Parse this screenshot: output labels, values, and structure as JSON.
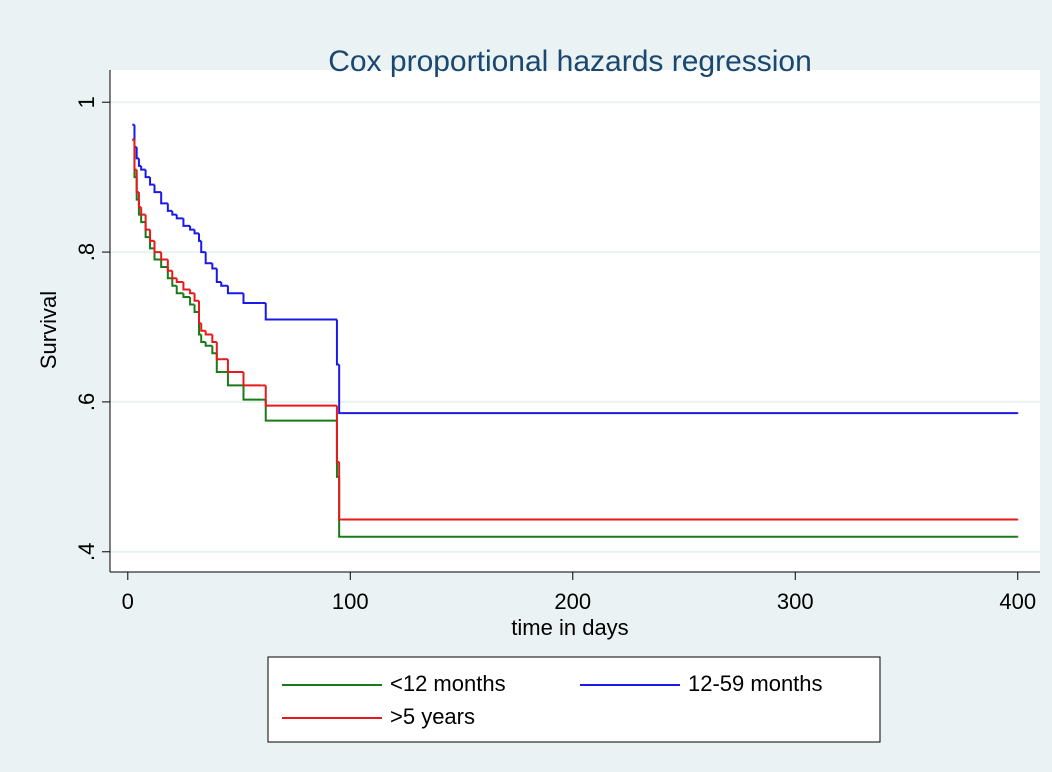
{
  "chart_data": {
    "type": "step",
    "title": "Cox proportional hazards regression",
    "xlabel": "time in days",
    "ylabel": "Survival",
    "x": [
      2,
      3,
      4,
      5,
      6,
      8,
      10,
      12,
      15,
      18,
      20,
      22,
      25,
      28,
      30,
      32,
      33,
      35,
      38,
      40,
      42,
      45,
      52,
      60,
      62,
      94,
      95,
      96,
      400
    ],
    "series": [
      {
        "name": "<12 months",
        "color": "#1a7a1a",
        "values": [
          0.95,
          0.9,
          0.87,
          0.85,
          0.84,
          0.82,
          0.805,
          0.79,
          0.78,
          0.765,
          0.755,
          0.745,
          0.74,
          0.73,
          0.72,
          0.69,
          0.68,
          0.675,
          0.665,
          0.64,
          0.64,
          0.622,
          0.603,
          0.603,
          0.575,
          0.5,
          0.42,
          0.42,
          0.42
        ]
      },
      {
        "name": "12-59 months",
        "color": "#1a1ae6",
        "values": [
          0.97,
          0.94,
          0.925,
          0.915,
          0.91,
          0.9,
          0.89,
          0.88,
          0.865,
          0.855,
          0.85,
          0.845,
          0.835,
          0.83,
          0.825,
          0.815,
          0.8,
          0.785,
          0.778,
          0.76,
          0.755,
          0.745,
          0.732,
          0.732,
          0.71,
          0.65,
          0.585,
          0.585,
          0.585
        ]
      },
      {
        "name": ">5 years",
        "color": "#e61a1a",
        "values": [
          0.95,
          0.91,
          0.88,
          0.86,
          0.85,
          0.83,
          0.815,
          0.8,
          0.79,
          0.775,
          0.765,
          0.76,
          0.75,
          0.745,
          0.735,
          0.705,
          0.695,
          0.69,
          0.68,
          0.657,
          0.657,
          0.64,
          0.622,
          0.622,
          0.595,
          0.52,
          0.443,
          0.443,
          0.443
        ]
      }
    ],
    "xlim": [
      -8,
      410
    ],
    "ylim": [
      0.373,
      1.043
    ],
    "xticks": [
      0,
      100,
      200,
      300,
      400
    ],
    "yticks": [
      {
        "value": 0.4,
        "label": ".4"
      },
      {
        "value": 0.6,
        "label": ".6"
      },
      {
        "value": 0.8,
        "label": ".8"
      },
      1
    ],
    "grid": true,
    "legend": "bottom"
  }
}
